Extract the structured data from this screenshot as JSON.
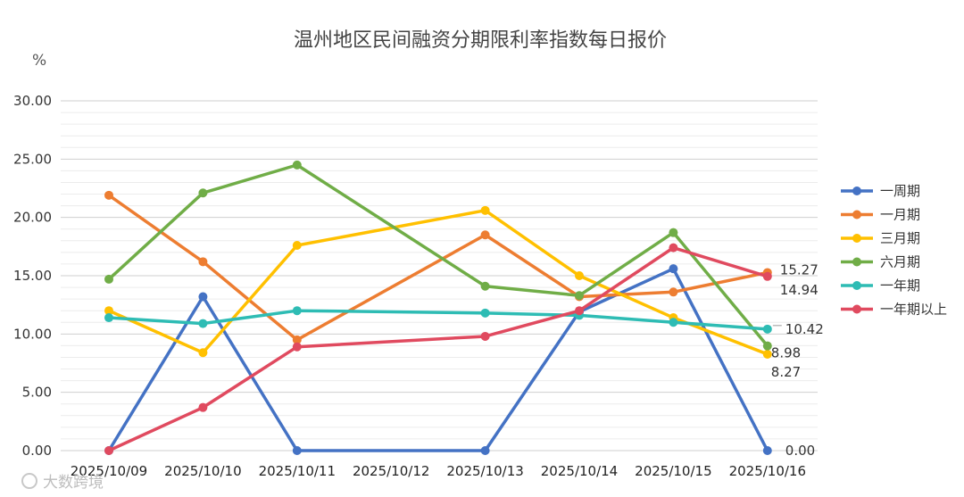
{
  "chart_data": {
    "type": "line",
    "title": "温州地区民间融资分期限利率指数每日报价",
    "unit_label": "%",
    "x": [
      "2025/10/09",
      "2025/10/10",
      "2025/10/11",
      "2025/10/12",
      "2025/10/13",
      "2025/10/14",
      "2025/10/15",
      "2025/10/16"
    ],
    "y_ticks": [
      "0.00",
      "5.00",
      "10.00",
      "15.00",
      "20.00",
      "25.00",
      "30.00"
    ],
    "ylim": [
      0,
      30
    ],
    "grid": true,
    "legend_position": "right",
    "series": [
      {
        "name": "一周期",
        "color": "#4472c4",
        "values": [
          0,
          13.2,
          0,
          null,
          0,
          11.9,
          15.6,
          0
        ]
      },
      {
        "name": "一月期",
        "color": "#ed7d31",
        "values": [
          21.9,
          16.2,
          9.5,
          null,
          18.5,
          13.2,
          13.6,
          15.27
        ]
      },
      {
        "name": "三月期",
        "color": "#ffc000",
        "values": [
          12.0,
          8.4,
          17.6,
          null,
          20.6,
          15.0,
          11.4,
          8.27
        ]
      },
      {
        "name": "六月期",
        "color": "#70ad47",
        "values": [
          14.7,
          22.1,
          24.5,
          null,
          14.1,
          13.3,
          18.7,
          8.98
        ]
      },
      {
        "name": "一年期",
        "color": "#2ebcb4",
        "values": [
          11.4,
          10.9,
          12.0,
          null,
          11.8,
          11.6,
          11.0,
          10.42
        ]
      },
      {
        "name": "一年期以上",
        "color": "#e04a5f",
        "values": [
          0,
          3.7,
          8.9,
          null,
          9.8,
          12.0,
          17.4,
          14.94
        ]
      }
    ],
    "end_labels": [
      {
        "text": "15.27",
        "value": 15.27,
        "color": "#ed7d31"
      },
      {
        "text": "14.94",
        "value": 14.94,
        "color": "#e04a5f"
      },
      {
        "text": "10.42",
        "value": 10.42,
        "color": "#2ebcb4"
      },
      {
        "text": "8.98",
        "value": 8.98,
        "color": "#70ad47"
      },
      {
        "text": "8.27",
        "value": 8.27,
        "color": "#ffc000"
      },
      {
        "text": "0.00",
        "value": 0,
        "color": "#4472c4"
      }
    ]
  },
  "watermark": "大数跨境"
}
